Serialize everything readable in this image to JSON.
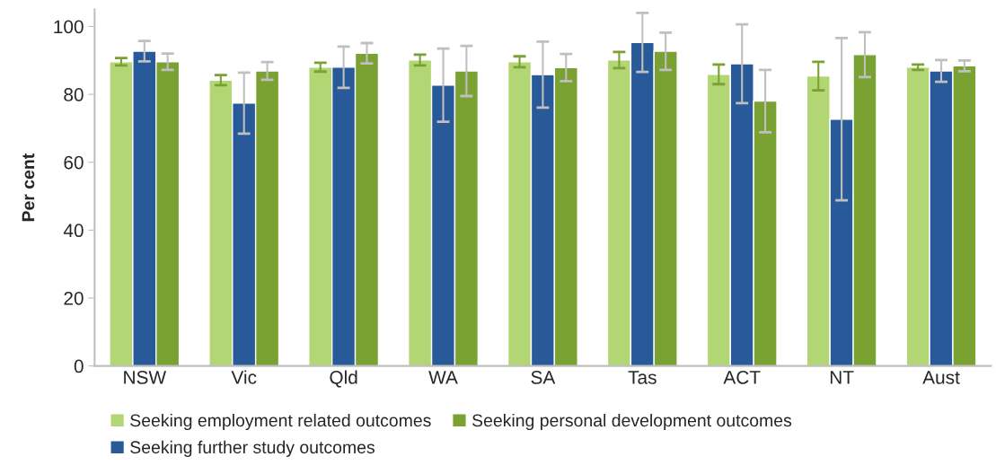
{
  "chart_data": {
    "type": "bar",
    "ylabel": "Per cent",
    "categories": [
      "NSW",
      "Vic",
      "Qld",
      "WA",
      "SA",
      "Tas",
      "ACT",
      "NT",
      "Aust"
    ],
    "series": [
      {
        "name": "Seeking employment related outcomes",
        "color": "#b3d674",
        "values": [
          89.6,
          84.2,
          88.0,
          90.1,
          89.6,
          90.1,
          85.9,
          85.4,
          88.0
        ],
        "errors": [
          1.1,
          1.5,
          1.3,
          1.6,
          1.6,
          2.4,
          2.9,
          4.2,
          0.8
        ]
      },
      {
        "name": "Seeking further study outcomes",
        "color": "#285a9a",
        "values": [
          92.7,
          77.4,
          88.0,
          82.7,
          85.8,
          95.3,
          89.0,
          72.7,
          86.9
        ],
        "errors": [
          3.0,
          9.0,
          6.1,
          10.8,
          9.7,
          8.7,
          11.6,
          23.9,
          3.2
        ]
      },
      {
        "name": "Seeking personal development outcomes",
        "color": "#79a232",
        "values": [
          89.6,
          86.9,
          92.1,
          86.9,
          87.9,
          92.7,
          78.0,
          91.7,
          88.4
        ],
        "errors": [
          2.4,
          2.6,
          3.0,
          7.4,
          4.0,
          5.5,
          9.2,
          6.6,
          1.6
        ]
      }
    ],
    "ylim": [
      0,
      105
    ],
    "yticks": [
      0,
      20,
      40,
      60,
      80,
      100
    ],
    "grid": false,
    "legend": "bottom"
  }
}
